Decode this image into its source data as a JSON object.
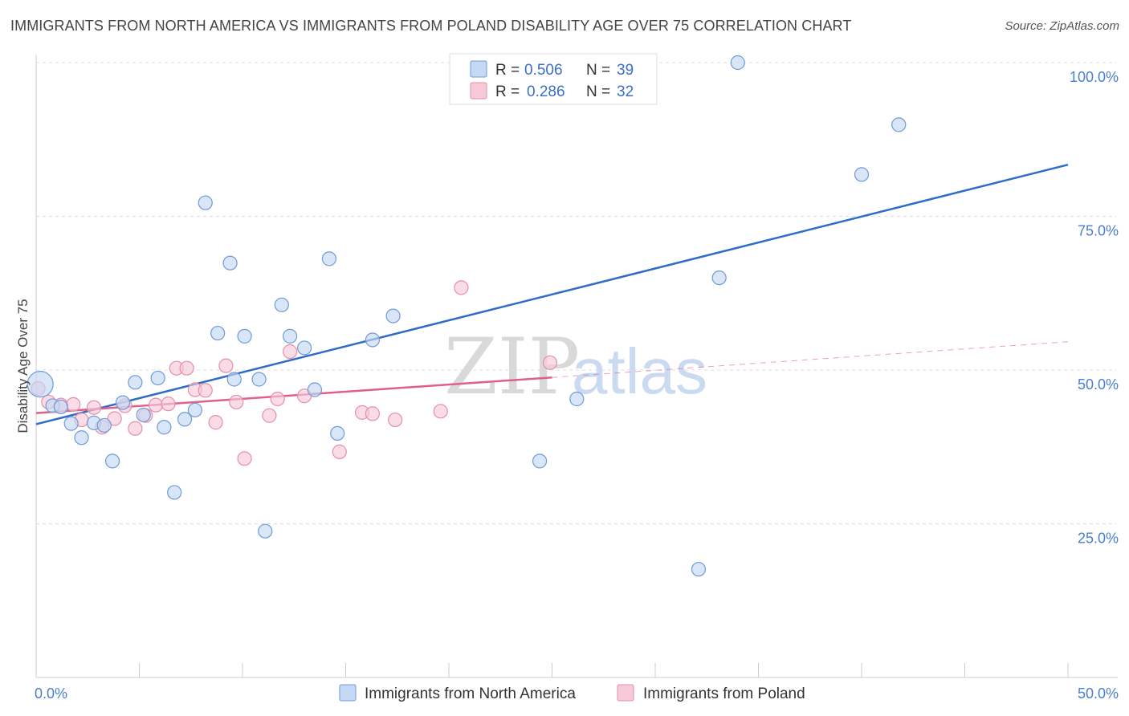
{
  "title": "IMMIGRANTS FROM NORTH AMERICA VS IMMIGRANTS FROM POLAND DISABILITY AGE OVER 75 CORRELATION CHART",
  "source": "Source: ZipAtlas.com",
  "watermark": {
    "zip": "ZIP",
    "atlas": "atlas"
  },
  "colors": {
    "blue_fill": "#c5d8f4",
    "blue_stroke": "#6f9ad8",
    "blue_line": "#2d6cc9",
    "pink_fill": "#f6c9d7",
    "pink_stroke": "#e58faa",
    "pink_line": "#e0608b"
  },
  "legend": {
    "r_label": "R =",
    "n_label": "N =",
    "rows": [
      {
        "r": "0.506",
        "n": "39"
      },
      {
        "r": "0.286",
        "n": "32"
      }
    ]
  },
  "chart_data": {
    "type": "scatter",
    "title": "IMMIGRANTS FROM NORTH AMERICA VS IMMIGRANTS FROM POLAND DISABILITY AGE OVER 75 CORRELATION CHART",
    "xlabel": "",
    "ylabel": "Disability Age Over 75",
    "xlim": [
      0,
      50
    ],
    "ylim": [
      0,
      102
    ],
    "x_tick_labels": [
      {
        "value": 0,
        "label": "0.0%"
      },
      {
        "value": 50,
        "label": "50.0%"
      }
    ],
    "y_tick_labels": [
      {
        "value": 25,
        "label": "25.0%"
      },
      {
        "value": 50,
        "label": "50.0%"
      },
      {
        "value": 75,
        "label": "75.0%"
      },
      {
        "value": 100,
        "label": "100.0%"
      }
    ],
    "grid": true,
    "legend_placement": "top-center",
    "series": [
      {
        "name": "Immigrants from North America",
        "color": "#6f9ad8",
        "points": [
          [
            0.2,
            47.7
          ],
          [
            0.8,
            44.2
          ],
          [
            1.2,
            44.0
          ],
          [
            1.7,
            41.3
          ],
          [
            2.2,
            39.0
          ],
          [
            2.8,
            41.4
          ],
          [
            3.3,
            41.0
          ],
          [
            3.7,
            35.2
          ],
          [
            4.2,
            44.7
          ],
          [
            4.8,
            48.0
          ],
          [
            5.2,
            42.7
          ],
          [
            5.9,
            48.7
          ],
          [
            6.2,
            40.7
          ],
          [
            6.7,
            30.1
          ],
          [
            7.2,
            42.0
          ],
          [
            7.7,
            43.5
          ],
          [
            8.2,
            77.2
          ],
          [
            8.8,
            56.0
          ],
          [
            9.4,
            67.4
          ],
          [
            9.6,
            48.5
          ],
          [
            10.1,
            55.5
          ],
          [
            10.8,
            48.5
          ],
          [
            11.1,
            23.8
          ],
          [
            11.9,
            60.6
          ],
          [
            12.3,
            55.5
          ],
          [
            13.0,
            53.6
          ],
          [
            13.5,
            46.8
          ],
          [
            14.2,
            68.1
          ],
          [
            14.6,
            39.7
          ],
          [
            16.3,
            54.9
          ],
          [
            17.3,
            58.8
          ],
          [
            20.7,
            100.0
          ],
          [
            24.4,
            35.2
          ],
          [
            26.2,
            45.3
          ],
          [
            32.1,
            17.6
          ],
          [
            33.1,
            65.0
          ],
          [
            34.0,
            100.0
          ],
          [
            40.0,
            81.8
          ],
          [
            41.8,
            89.9
          ]
        ]
      },
      {
        "name": "Immigrants from Poland",
        "color": "#e58faa",
        "points": [
          [
            0.1,
            47.0
          ],
          [
            0.6,
            44.8
          ],
          [
            1.2,
            44.3
          ],
          [
            1.8,
            44.4
          ],
          [
            2.2,
            41.9
          ],
          [
            2.8,
            43.9
          ],
          [
            3.2,
            40.7
          ],
          [
            3.8,
            42.1
          ],
          [
            4.3,
            44.2
          ],
          [
            4.8,
            40.5
          ],
          [
            5.3,
            42.6
          ],
          [
            5.8,
            44.3
          ],
          [
            6.4,
            44.5
          ],
          [
            6.8,
            50.3
          ],
          [
            7.3,
            50.3
          ],
          [
            7.7,
            46.8
          ],
          [
            8.2,
            46.7
          ],
          [
            8.7,
            41.5
          ],
          [
            9.2,
            50.7
          ],
          [
            9.7,
            44.8
          ],
          [
            10.1,
            35.6
          ],
          [
            11.3,
            42.6
          ],
          [
            11.7,
            45.3
          ],
          [
            12.3,
            53.0
          ],
          [
            13.0,
            45.8
          ],
          [
            14.7,
            36.7
          ],
          [
            15.8,
            43.1
          ],
          [
            16.3,
            42.9
          ],
          [
            17.4,
            41.9
          ],
          [
            19.6,
            43.3
          ],
          [
            20.6,
            63.4
          ],
          [
            24.9,
            51.2
          ]
        ]
      }
    ],
    "trend_lines": [
      {
        "series": "Immigrants from North America",
        "x0": 0,
        "y0": 41.2,
        "x1": 50,
        "y1": 83.4,
        "style": "solid"
      },
      {
        "series": "Immigrants from Poland",
        "x0": 0,
        "y0": 43.0,
        "x1": 25,
        "y1": 48.8,
        "style": "solid"
      },
      {
        "series": "Immigrants from Poland",
        "x0": 25,
        "y0": 48.8,
        "x1": 50,
        "y1": 54.6,
        "style": "dashed"
      }
    ]
  }
}
